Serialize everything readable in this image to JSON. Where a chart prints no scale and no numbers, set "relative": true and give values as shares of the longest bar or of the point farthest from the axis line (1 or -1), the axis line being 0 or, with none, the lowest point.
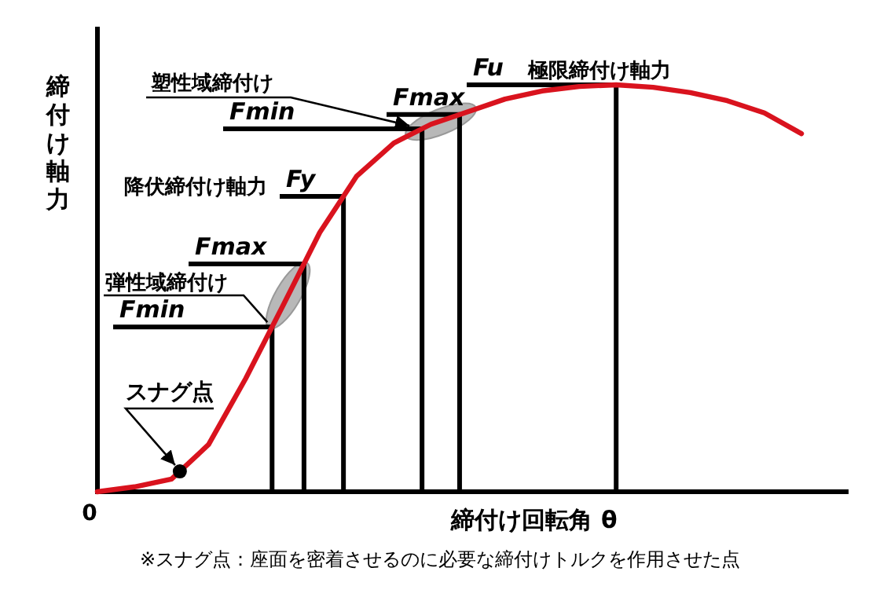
{
  "chart_data": {
    "type": "line",
    "relative": true,
    "ylabel": "締付け軸力",
    "xlabel": "締付け回転角 θ",
    "marker": "none",
    "line_style": "solid",
    "categories": [
      null,
      null,
      null,
      null,
      null,
      null,
      null,
      null,
      null,
      null,
      null,
      null,
      null,
      null,
      null,
      null,
      null,
      null,
      null,
      null
    ],
    "series": [
      {
        "color": "#d9131e",
        "values": [
          0,
          0.012,
          0.031,
          0.116,
          0.278,
          0.456,
          0.637,
          0.776,
          0.857,
          0.903,
          0.934,
          0.965,
          0.985,
          0.996,
          1.0,
          0.994,
          0.981,
          0.961,
          0.931,
          0.88
        ]
      }
    ],
    "ref_lines": [
      {
        "axis": "y",
        "value": 0.405,
        "label": "*Fmin*"
      },
      {
        "axis": "y",
        "value": 0.56,
        "label": "*Fmax*"
      },
      {
        "axis": "y",
        "value": 0.726,
        "label": "*Fy*"
      },
      {
        "axis": "y",
        "value": 0.892,
        "label": "*Fmin*"
      },
      {
        "axis": "y",
        "value": 0.927,
        "label": "*Fmax*"
      },
      {
        "axis": "y",
        "value": 1.0,
        "label": "*Fu*"
      }
    ],
    "annotations": [
      "0",
      {
        "text": "スナグ点",
        "y": 0.05
      },
      "弾性域締付け",
      "降伏締付け軸力",
      "塑性域締付け",
      "極限締付け軸力",
      "※スナグ点：座面を密着させるのに必要な締付けトルクを作用させた点"
    ]
  }
}
